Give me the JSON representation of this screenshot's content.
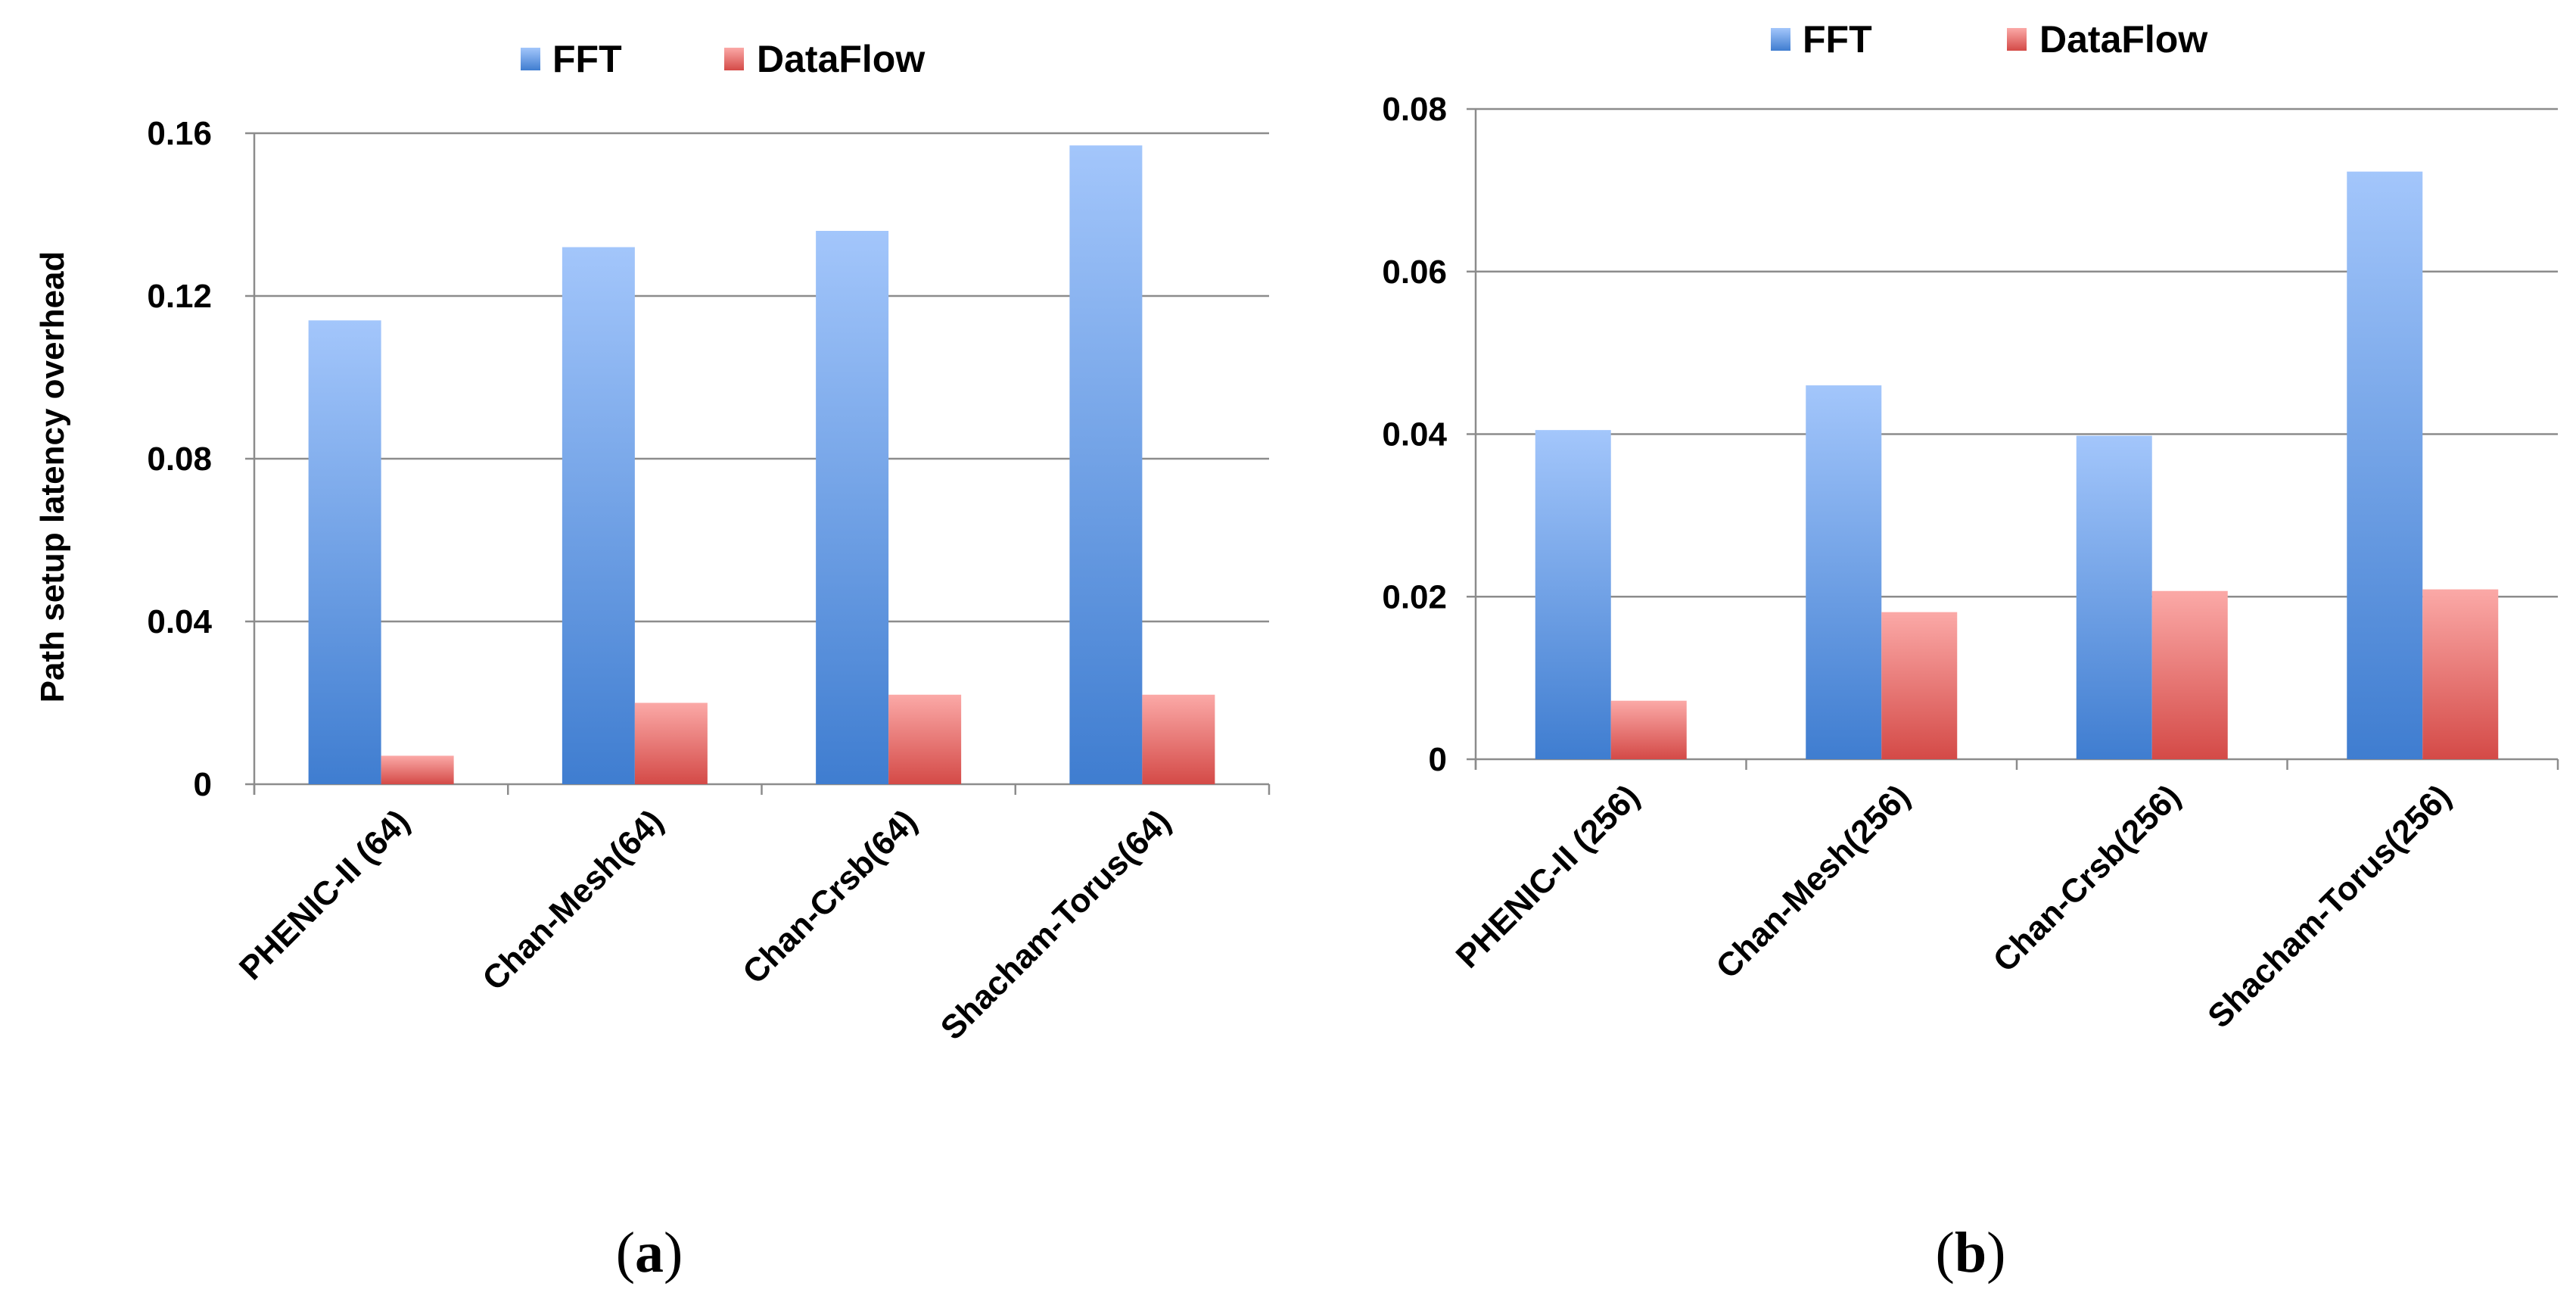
{
  "colors": {
    "fft_top": "#a3c6fb",
    "fft_bottom": "#3f7dd0",
    "dataflow_top": "#fba9a7",
    "dataflow_bottom": "#d44a47"
  },
  "chart_data": [
    {
      "type": "bar",
      "panel_label": "a",
      "title": "",
      "xlabel": "",
      "ylabel": "Path setup  latency overhead",
      "ylim": [
        0,
        0.16
      ],
      "yticks": [
        "0",
        "0.04",
        "0.08",
        "0.12",
        "0.16"
      ],
      "ytick_values": [
        0,
        0.04,
        0.08,
        0.12,
        0.16
      ],
      "grid": true,
      "legend": "top-center",
      "categories": [
        "PHENIC-II  (64)",
        "Chan-Mesh(64)",
        "Chan-Crsb(64)",
        "Shacham-Torus(64)"
      ],
      "series": [
        {
          "name": "FFT",
          "values": [
            0.114,
            0.132,
            0.136,
            0.157
          ]
        },
        {
          "name": "DataFlow",
          "values": [
            0.007,
            0.02,
            0.022,
            0.022
          ]
        }
      ]
    },
    {
      "type": "bar",
      "panel_label": "b",
      "title": "",
      "xlabel": "",
      "ylabel": "",
      "ylim": [
        0,
        0.08
      ],
      "yticks": [
        "0",
        "0.02",
        "0.04",
        "0.06",
        "0.08"
      ],
      "ytick_values": [
        0,
        0.02,
        0.04,
        0.06,
        0.08
      ],
      "grid": true,
      "legend": "top-center",
      "categories": [
        "PHENIC-II  (256)",
        "Chan-Mesh(256)",
        "Chan-Crsb(256)",
        "Shacham-Torus(256)"
      ],
      "series": [
        {
          "name": "FFT",
          "values": [
            0.0405,
            0.046,
            0.0398,
            0.0723
          ]
        },
        {
          "name": "DataFlow",
          "values": [
            0.0072,
            0.0181,
            0.0207,
            0.0209
          ]
        }
      ]
    }
  ]
}
